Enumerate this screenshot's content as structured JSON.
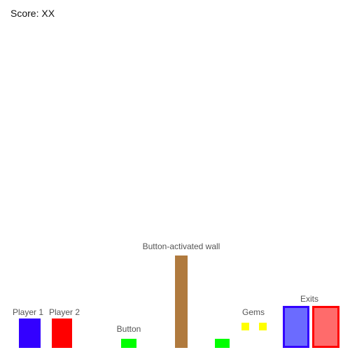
{
  "hud": {
    "score_text": "Score: XX"
  },
  "labels": {
    "player1": "Player 1",
    "player2": "Player 2",
    "button": "Button",
    "wall": "Button-activated wall",
    "gems": "Gems",
    "exits": "Exits"
  },
  "colors": {
    "player1": "#3300ff",
    "player2": "#ff0000",
    "button": "#00ff00",
    "wall": "#b07a3e",
    "gem": "#ffff00",
    "exit1_fill": "#6b6bff",
    "exit1_border": "#3300ff",
    "exit2_fill": "#ff6b6b",
    "exit2_border": "#ff0000"
  }
}
